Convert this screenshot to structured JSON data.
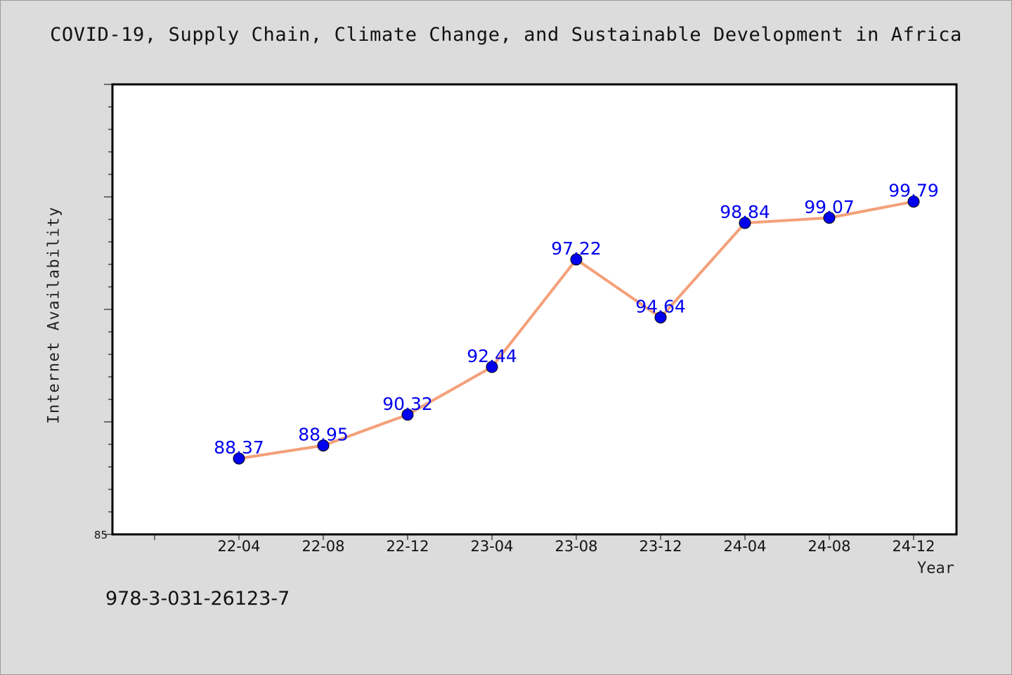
{
  "title": "COVID-19, Supply Chain, Climate Change, and Sustainable Development in Africa",
  "footnote": "978-3-031-26123-7",
  "chart_data": {
    "type": "line",
    "categories": [
      "22-04",
      "22-08",
      "22-12",
      "23-04",
      "23-08",
      "23-12",
      "24-04",
      "24-08",
      "24-12"
    ],
    "series": [
      {
        "values": [
          88.37,
          88.95,
          90.32,
          92.44,
          97.22,
          94.64,
          98.84,
          99.07,
          99.79
        ],
        "line_color": "#f4a07a",
        "marker_color": "#0000ee",
        "label_color": "#0000ee"
      }
    ],
    "xlabel": "Year",
    "ylabel": "Internet Availability",
    "ylim": [
      85,
      105
    ],
    "y_tick_labels": [
      "85"
    ],
    "grid": false,
    "legend": "none",
    "background": "#ffffff",
    "figure_background": "#dcdcdc"
  }
}
